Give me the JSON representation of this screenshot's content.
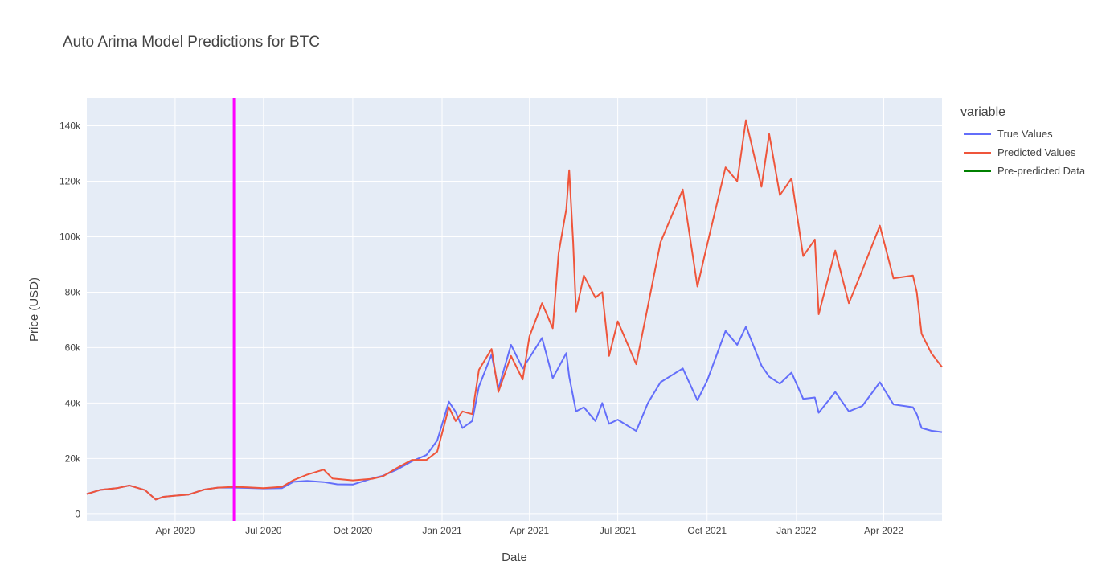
{
  "chart_data": {
    "type": "line",
    "title": "Auto Arima Model Predictions for BTC",
    "xlabel": "Date",
    "ylabel": "Price (USD)",
    "legend_title": "variable",
    "legend_position": "top-right",
    "grid": true,
    "plot_background": "#e5ecf6",
    "xlim": [
      "2020-01-01",
      "2022-05-31"
    ],
    "ylim": [
      -2500,
      150000
    ],
    "x_ticks": [
      {
        "date": "2020-04-01",
        "label": "Apr 2020"
      },
      {
        "date": "2020-07-01",
        "label": "Jul 2020"
      },
      {
        "date": "2020-10-01",
        "label": "Oct 2020"
      },
      {
        "date": "2021-01-01",
        "label": "Jan 2021"
      },
      {
        "date": "2021-04-01",
        "label": "Apr 2021"
      },
      {
        "date": "2021-07-01",
        "label": "Jul 2021"
      },
      {
        "date": "2021-10-01",
        "label": "Oct 2021"
      },
      {
        "date": "2022-01-01",
        "label": "Jan 2022"
      },
      {
        "date": "2022-04-01",
        "label": "Apr 2022"
      }
    ],
    "y_ticks": [
      {
        "value": 0,
        "label": "0"
      },
      {
        "value": 20000,
        "label": "20k"
      },
      {
        "value": 40000,
        "label": "40k"
      },
      {
        "value": 60000,
        "label": "60k"
      },
      {
        "value": 80000,
        "label": "80k"
      },
      {
        "value": 100000,
        "label": "100k"
      },
      {
        "value": 120000,
        "label": "120k"
      },
      {
        "value": 140000,
        "label": "140k"
      }
    ],
    "vertical_line": {
      "date": "2020-06-01",
      "color": "#ff00ff"
    },
    "series": [
      {
        "name": "True Values",
        "color": "#636efa",
        "points": [
          [
            "2020-01-01",
            7200
          ],
          [
            "2020-01-15",
            8700
          ],
          [
            "2020-02-01",
            9300
          ],
          [
            "2020-02-14",
            10300
          ],
          [
            "2020-03-01",
            8600
          ],
          [
            "2020-03-12",
            5200
          ],
          [
            "2020-03-20",
            6200
          ],
          [
            "2020-04-01",
            6600
          ],
          [
            "2020-04-15",
            7000
          ],
          [
            "2020-05-01",
            8800
          ],
          [
            "2020-05-15",
            9500
          ],
          [
            "2020-06-01",
            9500
          ],
          [
            "2020-06-15",
            9400
          ],
          [
            "2020-07-01",
            9200
          ],
          [
            "2020-07-20",
            9300
          ],
          [
            "2020-08-01",
            11600
          ],
          [
            "2020-08-15",
            11900
          ],
          [
            "2020-09-01",
            11500
          ],
          [
            "2020-09-15",
            10700
          ],
          [
            "2020-10-01",
            10600
          ],
          [
            "2020-10-21",
            12800
          ],
          [
            "2020-11-01",
            13800
          ],
          [
            "2020-11-15",
            15900
          ],
          [
            "2020-12-01",
            19000
          ],
          [
            "2020-12-16",
            21300
          ],
          [
            "2020-12-27",
            26500
          ],
          [
            "2021-01-08",
            40500
          ],
          [
            "2021-01-15",
            36800
          ],
          [
            "2021-01-22",
            31000
          ],
          [
            "2021-02-01",
            33500
          ],
          [
            "2021-02-08",
            46000
          ],
          [
            "2021-02-21",
            57500
          ],
          [
            "2021-02-28",
            45200
          ],
          [
            "2021-03-13",
            61000
          ],
          [
            "2021-03-25",
            52500
          ],
          [
            "2021-04-14",
            63500
          ],
          [
            "2021-04-25",
            49000
          ],
          [
            "2021-05-09",
            58000
          ],
          [
            "2021-05-12",
            49500
          ],
          [
            "2021-05-19",
            37000
          ],
          [
            "2021-05-27",
            38500
          ],
          [
            "2021-06-08",
            33500
          ],
          [
            "2021-06-15",
            40000
          ],
          [
            "2021-06-22",
            32500
          ],
          [
            "2021-07-01",
            34000
          ],
          [
            "2021-07-20",
            29900
          ],
          [
            "2021-08-01",
            40000
          ],
          [
            "2021-08-14",
            47500
          ],
          [
            "2021-09-06",
            52500
          ],
          [
            "2021-09-21",
            41000
          ],
          [
            "2021-10-01",
            48000
          ],
          [
            "2021-10-20",
            66000
          ],
          [
            "2021-11-01",
            61000
          ],
          [
            "2021-11-10",
            67500
          ],
          [
            "2021-11-26",
            53500
          ],
          [
            "2021-12-04",
            49500
          ],
          [
            "2021-12-15",
            47000
          ],
          [
            "2021-12-27",
            51000
          ],
          [
            "2022-01-08",
            41500
          ],
          [
            "2022-01-20",
            42000
          ],
          [
            "2022-01-24",
            36500
          ],
          [
            "2022-02-10",
            44000
          ],
          [
            "2022-02-24",
            37000
          ],
          [
            "2022-03-10",
            39000
          ],
          [
            "2022-03-28",
            47500
          ],
          [
            "2022-04-11",
            39500
          ],
          [
            "2022-05-01",
            38500
          ],
          [
            "2022-05-05",
            36000
          ],
          [
            "2022-05-10",
            31000
          ],
          [
            "2022-05-20",
            30000
          ],
          [
            "2022-05-31",
            29500
          ]
        ]
      },
      {
        "name": "Predicted Values",
        "color": "#ef553b",
        "points": [
          [
            "2020-01-01",
            7200
          ],
          [
            "2020-01-15",
            8700
          ],
          [
            "2020-02-01",
            9300
          ],
          [
            "2020-02-14",
            10300
          ],
          [
            "2020-03-01",
            8600
          ],
          [
            "2020-03-12",
            5200
          ],
          [
            "2020-03-20",
            6200
          ],
          [
            "2020-04-01",
            6600
          ],
          [
            "2020-04-15",
            7000
          ],
          [
            "2020-05-01",
            8800
          ],
          [
            "2020-05-15",
            9500
          ],
          [
            "2020-06-01",
            9800
          ],
          [
            "2020-06-15",
            9600
          ],
          [
            "2020-07-01",
            9300
          ],
          [
            "2020-07-20",
            9800
          ],
          [
            "2020-08-01",
            12200
          ],
          [
            "2020-08-15",
            14200
          ],
          [
            "2020-09-01",
            16000
          ],
          [
            "2020-09-10",
            12800
          ],
          [
            "2020-10-01",
            12100
          ],
          [
            "2020-10-21",
            12700
          ],
          [
            "2020-11-01",
            13600
          ],
          [
            "2020-11-15",
            16500
          ],
          [
            "2020-12-01",
            19500
          ],
          [
            "2020-12-16",
            19500
          ],
          [
            "2020-12-27",
            22500
          ],
          [
            "2021-01-08",
            38500
          ],
          [
            "2021-01-15",
            33500
          ],
          [
            "2021-01-22",
            37000
          ],
          [
            "2021-02-01",
            36000
          ],
          [
            "2021-02-08",
            52000
          ],
          [
            "2021-02-21",
            59500
          ],
          [
            "2021-02-28",
            44000
          ],
          [
            "2021-03-13",
            57000
          ],
          [
            "2021-03-25",
            48500
          ],
          [
            "2021-04-01",
            64000
          ],
          [
            "2021-04-14",
            76000
          ],
          [
            "2021-04-25",
            67000
          ],
          [
            "2021-05-01",
            94000
          ],
          [
            "2021-05-09",
            110000
          ],
          [
            "2021-05-12",
            124000
          ],
          [
            "2021-05-16",
            98000
          ],
          [
            "2021-05-19",
            73000
          ],
          [
            "2021-05-27",
            86000
          ],
          [
            "2021-06-08",
            78000
          ],
          [
            "2021-06-15",
            80000
          ],
          [
            "2021-06-22",
            57000
          ],
          [
            "2021-07-01",
            69500
          ],
          [
            "2021-07-20",
            54000
          ],
          [
            "2021-08-01",
            75000
          ],
          [
            "2021-08-14",
            98000
          ],
          [
            "2021-09-06",
            117000
          ],
          [
            "2021-09-21",
            82000
          ],
          [
            "2021-10-01",
            97000
          ],
          [
            "2021-10-20",
            125000
          ],
          [
            "2021-11-01",
            120000
          ],
          [
            "2021-11-10",
            142000
          ],
          [
            "2021-11-26",
            118000
          ],
          [
            "2021-12-04",
            137000
          ],
          [
            "2021-12-15",
            115000
          ],
          [
            "2021-12-27",
            121000
          ],
          [
            "2022-01-08",
            93000
          ],
          [
            "2022-01-20",
            99000
          ],
          [
            "2022-01-24",
            72000
          ],
          [
            "2022-02-10",
            95000
          ],
          [
            "2022-02-24",
            76000
          ],
          [
            "2022-03-10",
            88000
          ],
          [
            "2022-03-28",
            104000
          ],
          [
            "2022-04-11",
            85000
          ],
          [
            "2022-05-01",
            86000
          ],
          [
            "2022-05-05",
            80000
          ],
          [
            "2022-05-10",
            65000
          ],
          [
            "2022-05-20",
            58000
          ],
          [
            "2022-05-31",
            53000
          ]
        ]
      },
      {
        "name": "Pre-predicted Data",
        "color": "#008000",
        "points": []
      }
    ]
  }
}
